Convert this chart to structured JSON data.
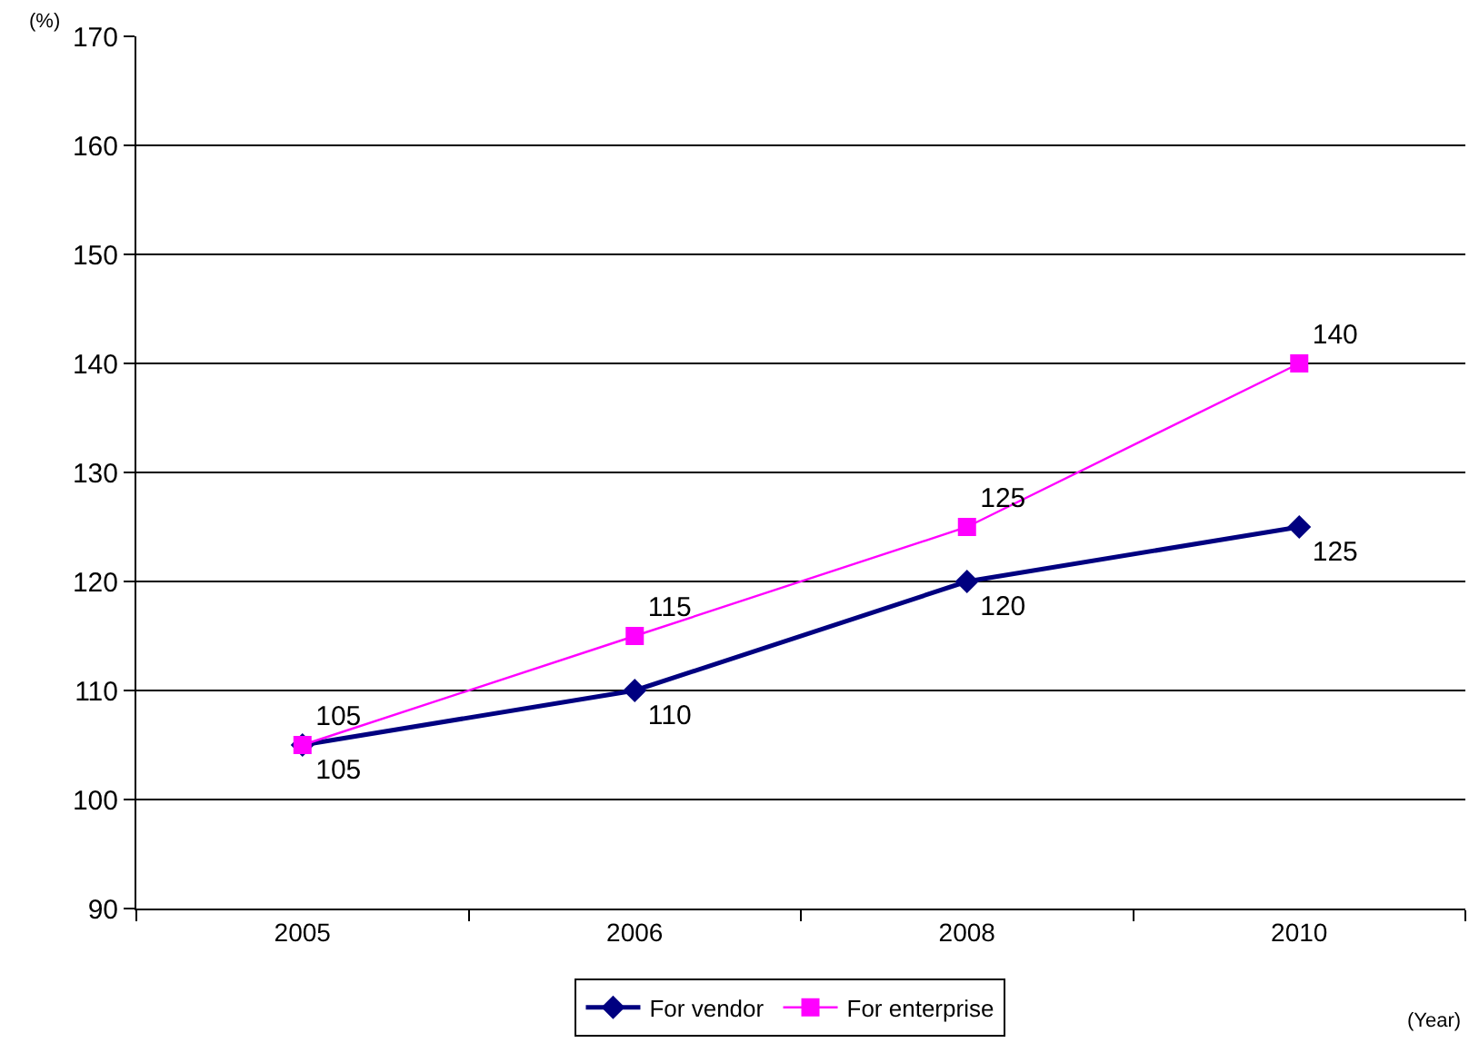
{
  "chart_data": {
    "type": "line",
    "ylabel": "(%)",
    "xlabel": "(Year)",
    "categories": [
      "2005",
      "2006",
      "2008",
      "2010"
    ],
    "series": [
      {
        "name": "For vendor",
        "color": "#000080",
        "values": [
          105,
          110,
          120,
          125
        ],
        "marker": "diamond"
      },
      {
        "name": "For enterprise",
        "color": "#ff00ff",
        "values": [
          105,
          115,
          125,
          140
        ],
        "marker": "square"
      }
    ],
    "ylim": [
      90,
      170
    ],
    "yticks": [
      90,
      100,
      110,
      120,
      130,
      140,
      150,
      160,
      170
    ],
    "grid": "y",
    "legend": "bottom",
    "data_labels": true
  }
}
